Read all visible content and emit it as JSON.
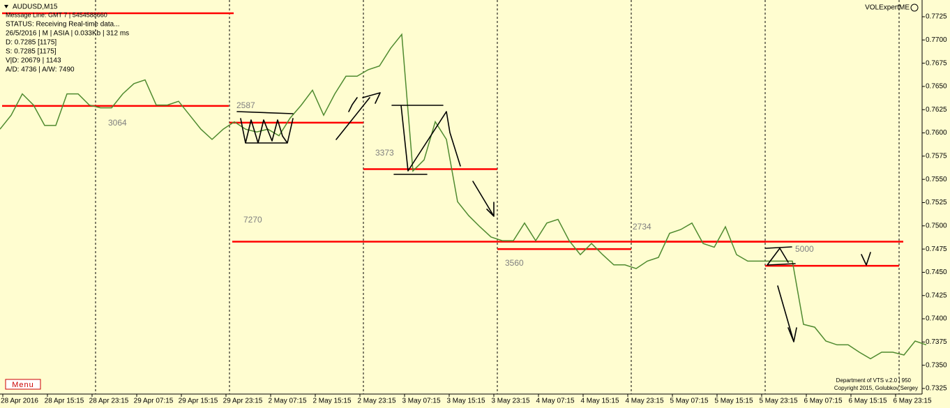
{
  "chart_data": {
    "type": "line",
    "title": "AUDUSD,M15",
    "info": [
      "Message Line: GMT 7 | 5454588660",
      "STATUS:  Receiving Real-time data...",
      "26/5/2016 | M | ASIA | 0.033Kb | 312 ms",
      "D: 0.7285  [1175]",
      "S: 0.7285  [1175]",
      "V|D: 20679 | 1143",
      "A/D: 4736 | A/W: 7490"
    ],
    "indicator": "VOLExpertME",
    "menu": "Menu",
    "footer": [
      "Department of VTS  v.2.0 | 950",
      "Copyright 2015, Golubkov Sergey"
    ],
    "xlabels": [
      "28 Apr 2016",
      "28 Apr 15:15",
      "28 Apr 23:15",
      "29 Apr 07:15",
      "29 Apr 15:15",
      "29 Apr 23:15",
      "2 May 07:15",
      "2 May 15:15",
      "2 May 23:15",
      "3 May 07:15",
      "3 May 15:15",
      "3 May 23:15",
      "4 May 07:15",
      "4 May 15:15",
      "4 May 23:15",
      "5 May 07:15",
      "5 May 15:15",
      "5 May 23:15",
      "6 May 07:15",
      "6 May 15:15",
      "6 May 23:15"
    ],
    "series": [
      {
        "name": "AUDUSD",
        "color": "#4f8a2f",
        "values": [
          0.7604,
          0.7619,
          0.7642,
          0.763,
          0.7608,
          0.7608,
          0.7642,
          0.7642,
          0.763,
          0.7627,
          0.7627,
          0.7642,
          0.7653,
          0.7657,
          0.763,
          0.763,
          0.7634,
          0.7619,
          0.7604,
          0.7593,
          0.7604,
          0.7612,
          0.7604,
          0.7601,
          0.7604,
          0.7597,
          0.7616,
          0.763,
          0.7646,
          0.7619,
          0.7642,
          0.7661,
          0.7661,
          0.7668,
          0.7672,
          0.7691,
          0.7706,
          0.7559,
          0.7571,
          0.7612,
          0.7593,
          0.7526,
          0.7511,
          0.7499,
          0.7488,
          0.7484,
          0.7484,
          0.7503,
          0.7484,
          0.7503,
          0.7507,
          0.7484,
          0.7469,
          0.7481,
          0.7469,
          0.7458,
          0.7458,
          0.7454,
          0.7462,
          0.7466,
          0.7492,
          0.7496,
          0.7503,
          0.7481,
          0.7477,
          0.7499,
          0.7469,
          0.7462,
          0.7462,
          0.7462,
          0.7462,
          0.7462,
          0.7394,
          0.7391,
          0.7376,
          0.7372,
          0.7372,
          0.7364,
          0.7357,
          0.7364,
          0.7364,
          0.7361,
          0.7376,
          0.7372
        ]
      }
    ],
    "levels": [
      {
        "name": "3064",
        "value": 0.7629
      },
      {
        "name": "2587",
        "value": 0.7611
      },
      {
        "name": "3373",
        "value": 0.7561
      },
      {
        "name": "7270",
        "value": 0.7483
      },
      {
        "name": "3560",
        "value": 0.7475
      },
      {
        "name": "2734",
        "value": 0.7483
      },
      {
        "name": "5000",
        "value": 0.7457
      }
    ],
    "level_color": "#ff0000",
    "ylim": [
      0.7319,
      0.7743
    ],
    "yticks": [
      0.7725,
      {
        "value": 0.77,
        "label": "0.7700"
      },
      0.7675,
      {
        "value": 0.765,
        "label": "0.7650"
      },
      0.7625,
      {
        "value": 0.76,
        "label": "0.7600"
      },
      0.7575,
      {
        "value": 0.755,
        "label": "0.7550"
      },
      0.7525,
      {
        "value": 0.75,
        "label": "0.7500"
      },
      0.7475,
      {
        "value": 0.745,
        "label": "0.7450"
      },
      0.7425,
      {
        "value": 0.74,
        "label": "0.7400"
      },
      0.7375,
      {
        "value": 0.735,
        "label": "0.7350"
      },
      0.7325
    ]
  }
}
